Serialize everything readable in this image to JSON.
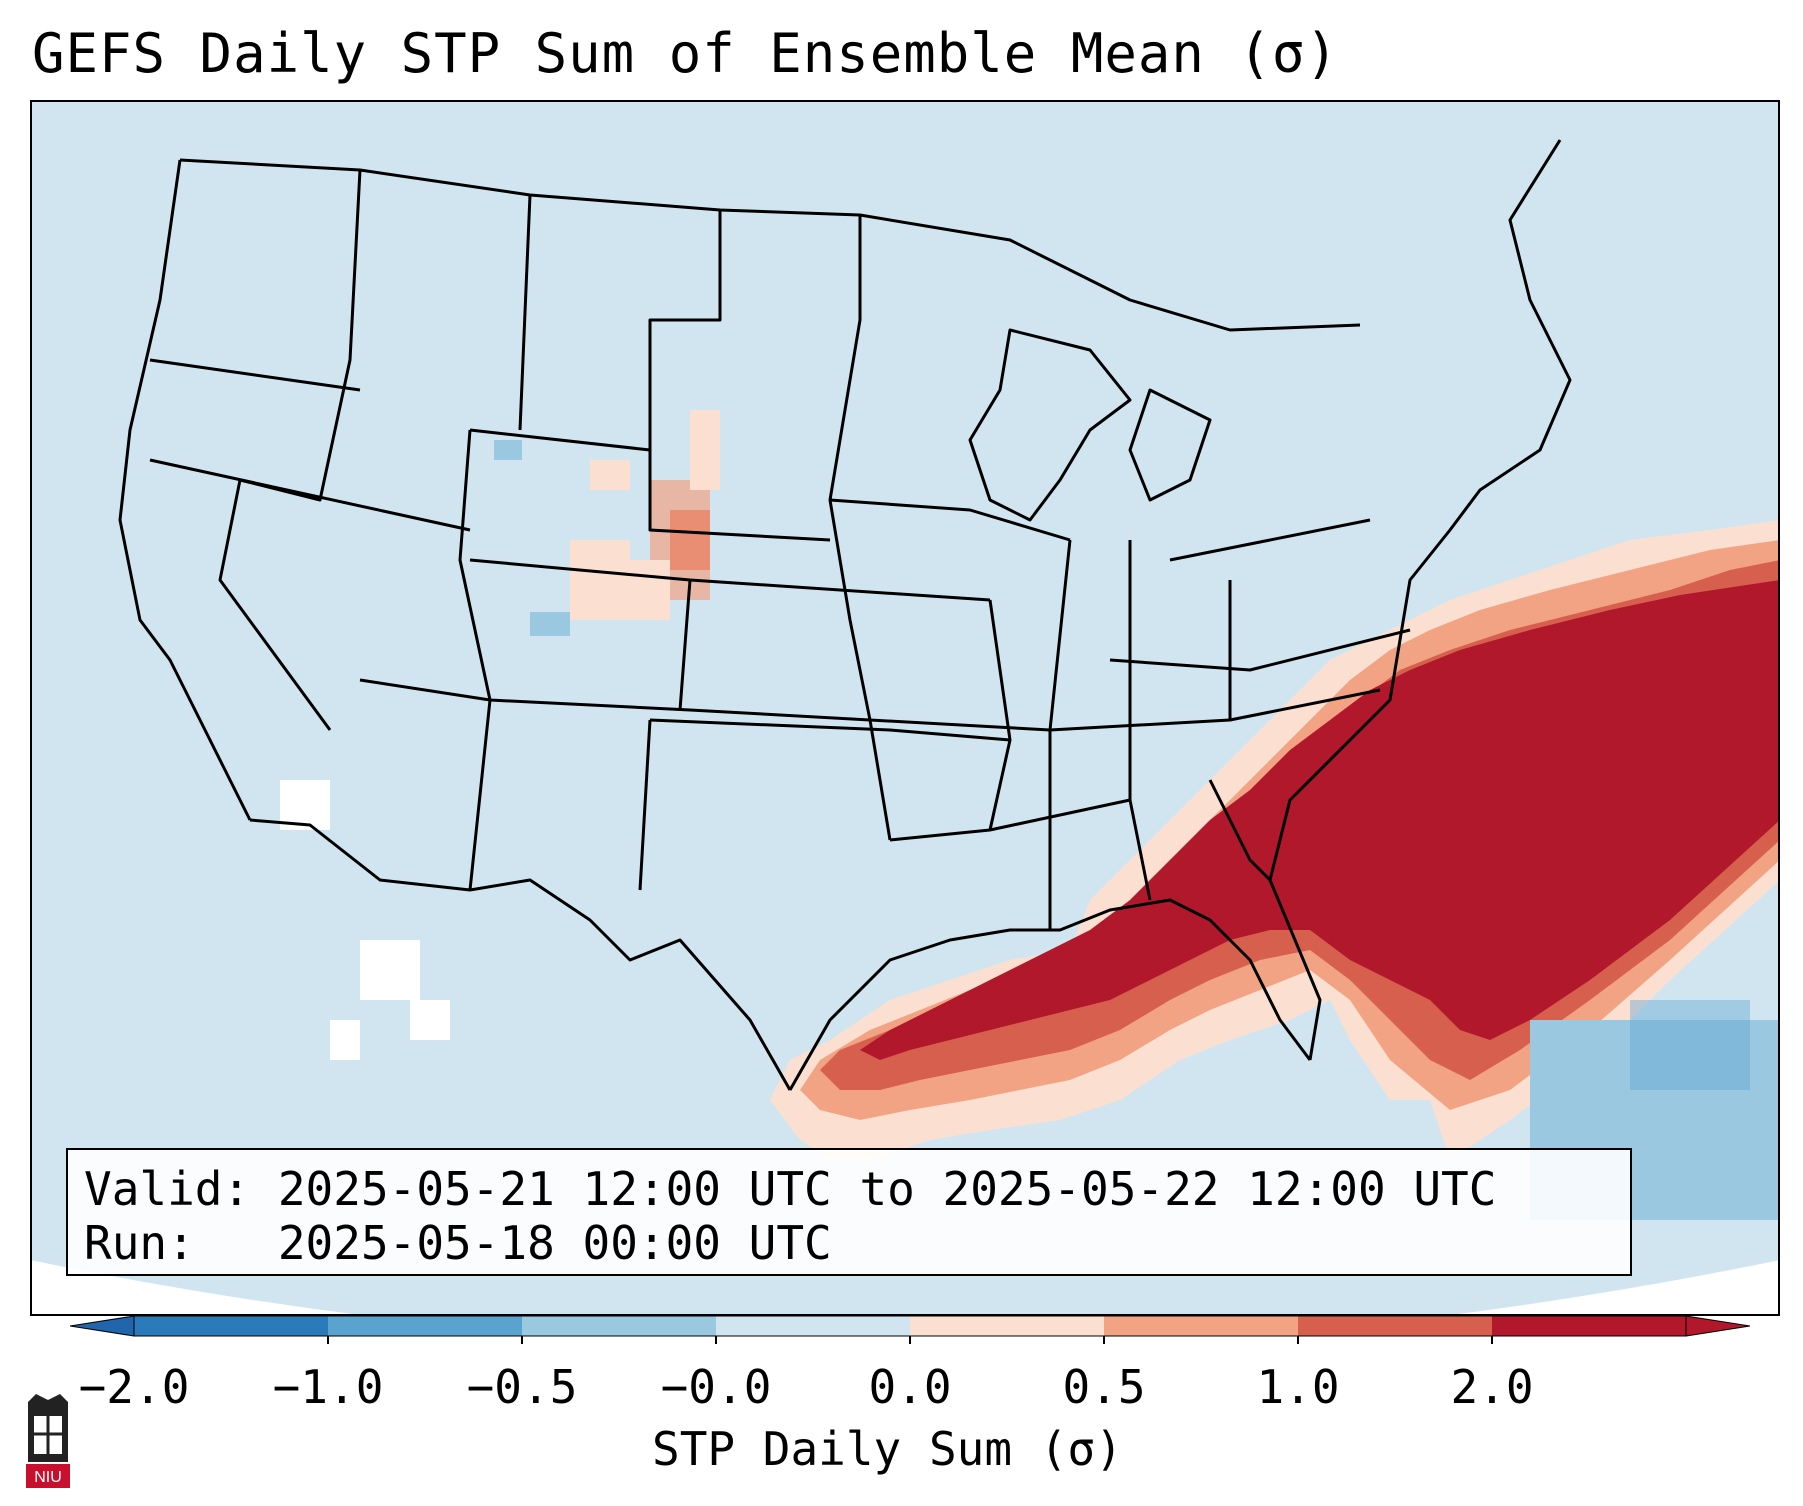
{
  "title": "GEFS Daily STP Sum of Ensemble Mean (σ)",
  "info": {
    "valid_label": "Valid: 2025-05-21 12:00 UTC to 2025-05-22 12:00 UTC",
    "run_label": "Run:   2025-05-18 00:00 UTC"
  },
  "colorbar": {
    "label": "STP Daily Sum (σ)",
    "ticks": [
      "−2.0",
      "−1.0",
      "−0.5",
      "−0.0",
      "0.0",
      "0.5",
      "1.0",
      "2.0"
    ],
    "colors": [
      "#2b7bba",
      "#5aa3cf",
      "#9ac8e0",
      "#d1e5f0",
      "#fbe0d1",
      "#f2a383",
      "#d6604d",
      "#b2182b"
    ],
    "underflow_color": "#2166ac",
    "overflow_color": "#b2182b"
  },
  "map": {
    "background_color": "#d1e5f0",
    "region": "CONUS",
    "fields": {
      "high_values_region": "Southeast US, Gulf Coast, Carolinas, Western Atlantic",
      "moderate_values_region": "Northern Plains (Wyoming, South Dakota, Nebraska)",
      "negative_values_region": "Western Atlantic near Bahamas"
    }
  },
  "logo": {
    "text": "NIU"
  }
}
